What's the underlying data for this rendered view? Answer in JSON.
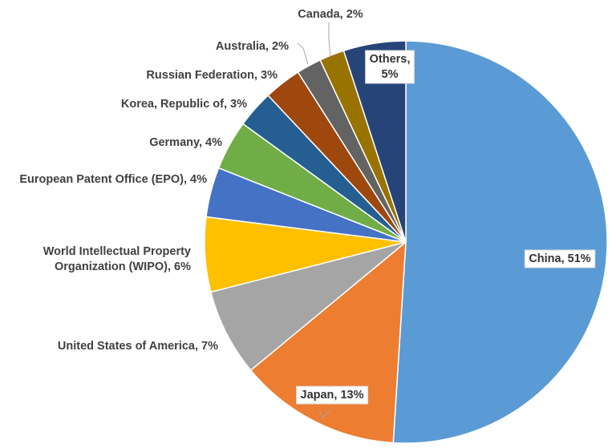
{
  "chart_data": {
    "type": "pie",
    "title": "",
    "start_angle_deg": 0,
    "direction": "clockwise",
    "slices": [
      {
        "label": "China",
        "value": 51,
        "display": "51%",
        "color": "#5B9BD5"
      },
      {
        "label": "Japan",
        "value": 13,
        "display": "13%",
        "color": "#ED7D31"
      },
      {
        "label": "United States of America",
        "value": 7,
        "display": "7%",
        "color": "#A5A5A5"
      },
      {
        "label": "World Intellectual Property Organization (WIPO)",
        "value": 6,
        "display": "6%",
        "color": "#FFC000"
      },
      {
        "label": "European Patent Office (EPO)",
        "value": 4,
        "display": "4%",
        "color": "#4472C4"
      },
      {
        "label": "Germany",
        "value": 4,
        "display": "4%",
        "color": "#70AD47"
      },
      {
        "label": "Korea, Republic of",
        "value": 3,
        "display": "3%",
        "color": "#255E91"
      },
      {
        "label": "Russian Federation",
        "value": 3,
        "display": "3%",
        "color": "#9E480E"
      },
      {
        "label": "Australia",
        "value": 2,
        "display": "2%",
        "color": "#636363"
      },
      {
        "label": "Canada",
        "value": 2,
        "display": "2%",
        "color": "#997300"
      },
      {
        "label": "Others",
        "value": 5,
        "display": "5%",
        "color": "#264478"
      }
    ],
    "labels": [
      {
        "lines": [
          "China, 51%"
        ]
      },
      {
        "lines": [
          "Japan, 13%"
        ]
      },
      {
        "lines": [
          "United States of America, 7%"
        ]
      },
      {
        "lines": [
          "World Intellectual Property",
          "Organization (WIPO), 6%"
        ]
      },
      {
        "lines": [
          "European Patent Office (EPO), 4%"
        ]
      },
      {
        "lines": [
          "Germany, 4%"
        ]
      },
      {
        "lines": [
          "Korea, Republic of, 3%"
        ]
      },
      {
        "lines": [
          "Russian Federation, 3%"
        ]
      },
      {
        "lines": [
          "Australia, 2%"
        ]
      },
      {
        "lines": [
          "Canada, 2%"
        ]
      },
      {
        "lines": [
          "Others,",
          "5%"
        ]
      }
    ],
    "legend": "none"
  }
}
